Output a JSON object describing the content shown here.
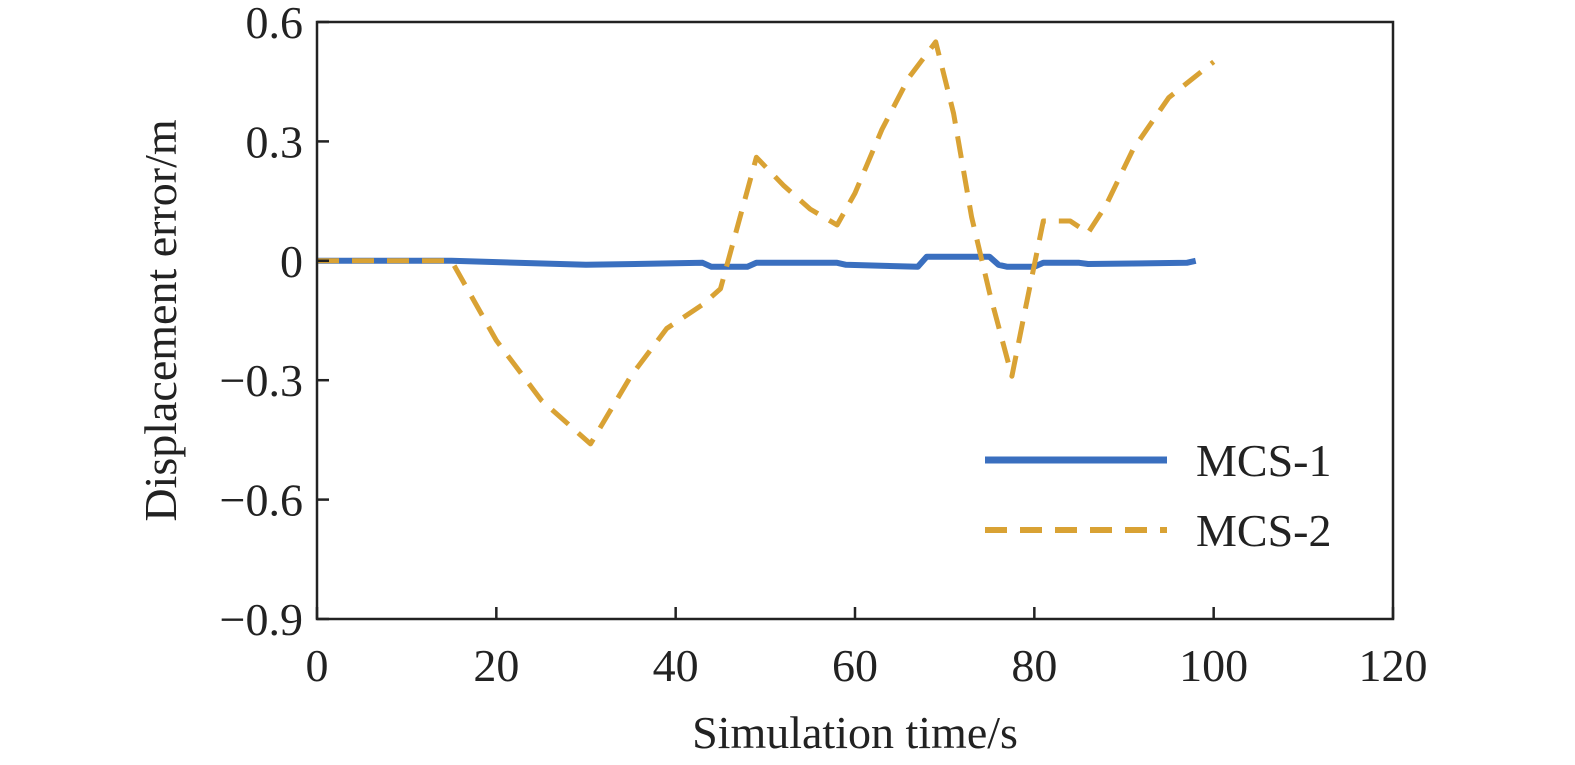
{
  "chart_data": {
    "type": "line",
    "title": "",
    "xlabel": "Simulation time/s",
    "ylabel": "Displacement error/m",
    "xlim": [
      0,
      120
    ],
    "ylim": [
      -0.9,
      0.6
    ],
    "xticks": [
      0,
      20,
      40,
      60,
      80,
      100,
      120
    ],
    "xtick_labels": [
      "0",
      "20",
      "40",
      "60",
      "80",
      "100",
      "120"
    ],
    "yticks": [
      0.6,
      0.3,
      0,
      -0.3,
      -0.6,
      -0.9
    ],
    "ytick_labels": [
      "0.6",
      "0.3",
      "0",
      "−0.3",
      "−0.6",
      "−0.9"
    ],
    "grid": false,
    "legend_position": "bottom-right",
    "series": [
      {
        "name": "MCS-1",
        "color": "#3a6fbf",
        "style": "solid",
        "x": [
          0,
          15,
          30,
          43,
          44,
          48,
          49,
          58,
          59,
          67,
          68,
          75,
          76,
          77,
          80,
          81,
          85,
          86,
          97,
          98
        ],
        "y": [
          0,
          0,
          -0.01,
          -0.005,
          -0.015,
          -0.015,
          -0.005,
          -0.005,
          -0.01,
          -0.015,
          0.01,
          0.01,
          -0.01,
          -0.015,
          -0.015,
          -0.005,
          -0.005,
          -0.008,
          -0.005,
          0.0
        ]
      },
      {
        "name": "MCS-2",
        "color": "#d9a234",
        "style": "dashed",
        "x": [
          0,
          15,
          20,
          25,
          30.5,
          35,
          39,
          43,
          45,
          49,
          52,
          55,
          58,
          60,
          63,
          66,
          69,
          71,
          73,
          75,
          77.5,
          79,
          81,
          84,
          86,
          88,
          91,
          95,
          100
        ],
        "y": [
          0,
          0,
          -0.2,
          -0.35,
          -0.46,
          -0.29,
          -0.17,
          -0.11,
          -0.07,
          0.26,
          0.19,
          0.13,
          0.09,
          0.17,
          0.33,
          0.46,
          0.55,
          0.37,
          0.11,
          -0.08,
          -0.29,
          -0.12,
          0.1,
          0.1,
          0.07,
          0.14,
          0.28,
          0.41,
          0.5
        ]
      }
    ]
  }
}
